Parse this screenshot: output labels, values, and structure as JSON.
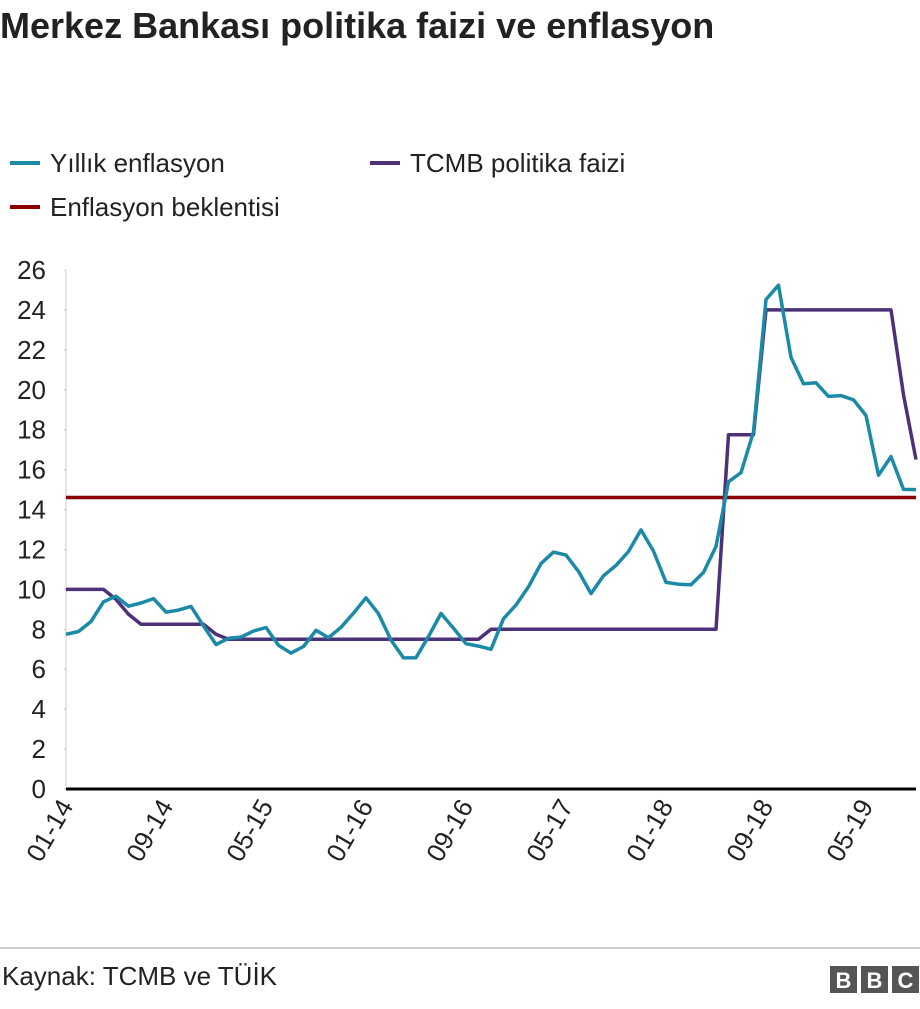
{
  "chart_data": {
    "type": "line",
    "title": "Merkez Bankası politika faizi ve enflasyon",
    "source": "Kaynak: TCMB ve TÜİK",
    "logo": [
      "B",
      "B",
      "C"
    ],
    "categories": [
      "01-14",
      null,
      null,
      null,
      null,
      null,
      null,
      null,
      "09-14",
      null,
      null,
      null,
      null,
      null,
      null,
      null,
      "05-15",
      null,
      null,
      null,
      null,
      null,
      null,
      null,
      "01-16",
      null,
      null,
      null,
      null,
      null,
      null,
      null,
      "09-16",
      null,
      null,
      null,
      null,
      null,
      null,
      null,
      "05-17",
      null,
      null,
      null,
      null,
      null,
      null,
      null,
      "01-18",
      null,
      null,
      null,
      null,
      null,
      null,
      null,
      "09-18",
      null,
      null,
      null,
      null,
      null,
      null,
      null,
      "05-19",
      null,
      null,
      null,
      null
    ],
    "series": [
      {
        "name": "Yıllık enflasyon",
        "color": "#1b8aa6",
        "values": [
          7.75,
          7.89,
          8.39,
          9.38,
          9.66,
          9.16,
          9.32,
          9.54,
          8.86,
          8.96,
          9.15,
          8.17,
          7.24,
          7.55,
          7.61,
          7.91,
          8.09,
          7.2,
          6.81,
          7.14,
          7.95,
          7.58,
          8.1,
          8.81,
          9.58,
          8.78,
          7.46,
          6.57,
          6.58,
          7.64,
          8.79,
          8.05,
          7.28,
          7.16,
          7.0,
          8.53,
          9.22,
          10.13,
          11.29,
          11.87,
          11.72,
          10.9,
          9.79,
          10.68,
          11.2,
          11.9,
          12.98,
          11.92,
          10.35,
          10.26,
          10.23,
          10.85,
          12.15,
          15.39,
          15.85,
          17.9,
          24.52,
          25.24,
          21.62,
          20.3,
          20.35,
          19.67,
          19.71,
          19.5,
          18.71,
          15.72,
          16.65,
          15.01,
          15.0
        ]
      },
      {
        "name": "TCMB politika faizi",
        "color": "#4d3178",
        "values": [
          10,
          10,
          10,
          10,
          9.5,
          8.75,
          8.25,
          8.25,
          8.25,
          8.25,
          8.25,
          8.25,
          7.75,
          7.5,
          7.5,
          7.5,
          7.5,
          7.5,
          7.5,
          7.5,
          7.5,
          7.5,
          7.5,
          7.5,
          7.5,
          7.5,
          7.5,
          7.5,
          7.5,
          7.5,
          7.5,
          7.5,
          7.5,
          7.5,
          8,
          8,
          8,
          8,
          8,
          8,
          8,
          8,
          8,
          8,
          8,
          8,
          8,
          8,
          8,
          8,
          8,
          8,
          8,
          17.75,
          17.75,
          17.75,
          24,
          24,
          24,
          24,
          24,
          24,
          24,
          24,
          24,
          24,
          24,
          19.75,
          16.5
        ]
      },
      {
        "name": "Enflasyon beklentisi",
        "color": "#8b0000",
        "value": 14.6
      }
    ],
    "ylim": [
      0,
      26
    ],
    "yticks": [
      0,
      2,
      4,
      6,
      8,
      10,
      12,
      14,
      16,
      18,
      20,
      22,
      24,
      26
    ],
    "grid": false
  }
}
